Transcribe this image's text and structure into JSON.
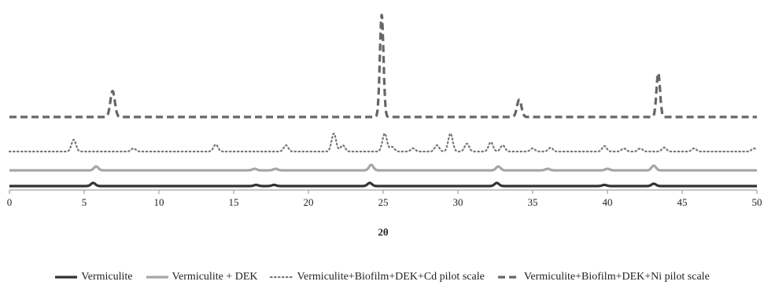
{
  "chart_data": {
    "type": "line",
    "xlabel": "2θ",
    "ylabel": "",
    "xlim": [
      0,
      50
    ],
    "xticks": [
      0,
      5,
      10,
      15,
      20,
      25,
      30,
      35,
      40,
      45,
      50
    ],
    "legend_position": "bottom",
    "series": [
      {
        "name": "Vermiculite",
        "color": "#333333",
        "dash": "solid",
        "baseline": 0,
        "peaks": [
          [
            5.6,
            4
          ],
          [
            16.5,
            1.5
          ],
          [
            17.7,
            1.5
          ],
          [
            24.1,
            4
          ],
          [
            32.6,
            4
          ],
          [
            39.8,
            1.5
          ],
          [
            43.1,
            3
          ]
        ]
      },
      {
        "name": "Vermiculite + DEK",
        "color": "#a6a6a6",
        "dash": "solid",
        "baseline": 20,
        "peaks": [
          [
            5.8,
            5
          ],
          [
            16.4,
            2
          ],
          [
            17.8,
            2
          ],
          [
            24.2,
            7
          ],
          [
            32.7,
            5
          ],
          [
            36.0,
            2
          ],
          [
            40.0,
            2
          ],
          [
            43.1,
            6
          ]
        ]
      },
      {
        "name": "Vermiculite+Biofilm+DEK+Cd pilot scale",
        "color": "#777777",
        "dash": "dotted",
        "baseline": 44,
        "peaks": [
          [
            4.3,
            15
          ],
          [
            8.3,
            4
          ],
          [
            13.8,
            9
          ],
          [
            18.5,
            8
          ],
          [
            21.7,
            23
          ],
          [
            22.3,
            8
          ],
          [
            25.1,
            23
          ],
          [
            25.6,
            6
          ],
          [
            27.0,
            4
          ],
          [
            28.6,
            8
          ],
          [
            29.5,
            23
          ],
          [
            30.6,
            10
          ],
          [
            32.2,
            12
          ],
          [
            33.0,
            8
          ],
          [
            35.0,
            4
          ],
          [
            36.2,
            5
          ],
          [
            39.8,
            7
          ],
          [
            41.1,
            4
          ],
          [
            42.2,
            4
          ],
          [
            43.8,
            5
          ],
          [
            45.8,
            4
          ],
          [
            49.8,
            4
          ]
        ]
      },
      {
        "name": "Vermiculite+Biofilm+DEK+Ni pilot scale",
        "color": "#666666",
        "dash": "dashed",
        "baseline": 88,
        "peaks": [
          [
            6.9,
            33
          ],
          [
            24.9,
            130
          ],
          [
            34.1,
            22
          ],
          [
            43.4,
            56
          ]
        ]
      }
    ]
  }
}
